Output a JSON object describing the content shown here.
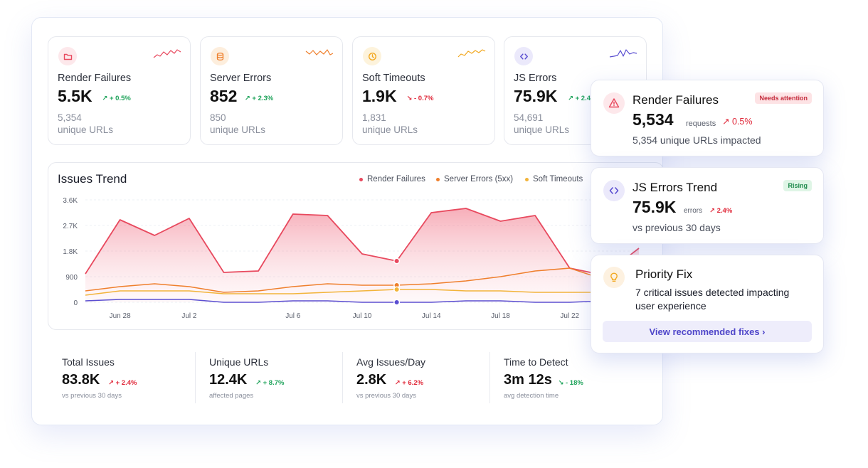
{
  "kpis": [
    {
      "title": "Render Failures",
      "value": "5.5K",
      "delta": "+ 0.5%",
      "direction": "up",
      "sub_count": "5,354",
      "sub_label": "unique URLs",
      "icon": "folder-icon",
      "color": "#e8495e",
      "icon_bg": "#fde8eb"
    },
    {
      "title": "Server Errors",
      "value": "852",
      "delta": "+ 2.3%",
      "direction": "up",
      "sub_count": "850",
      "sub_label": "unique URLs",
      "icon": "database-icon",
      "color": "#ef7f2c",
      "icon_bg": "#fdeedd"
    },
    {
      "title": "Soft Timeouts",
      "value": "1.9K",
      "delta": "- 0.7%",
      "direction": "down",
      "sub_count": "1,831",
      "sub_label": "unique URLs",
      "icon": "clock-icon",
      "color": "#f2a81f",
      "icon_bg": "#fdf3dc"
    },
    {
      "title": "JS Errors",
      "value": "75.9K",
      "delta": "+ 2.4%",
      "direction": "up",
      "sub_count": "54,691",
      "sub_label": "unique URLs",
      "icon": "code-icon",
      "color": "#5b4fd1",
      "icon_bg": "#ebe9fb"
    }
  ],
  "trend": {
    "title": "Issues Trend",
    "legend": [
      {
        "name": "Render Failures",
        "color": "#e8495e"
      },
      {
        "name": "Server Errors (5xx)",
        "color": "#ef7f2c"
      },
      {
        "name": "Soft Timeouts",
        "color": "#f2b43a"
      }
    ]
  },
  "chart_data": {
    "type": "area",
    "title": "Issues Trend",
    "y_ticks": [
      "3.6K",
      "2.7K",
      "1.8K",
      "900",
      "0"
    ],
    "x_ticks": [
      "Jun 28",
      "Jul 2",
      "Jul 6",
      "Jul 10",
      "Jul 14",
      "Jul 18",
      "Jul 22"
    ],
    "ylim": [
      0,
      3600
    ],
    "x": [
      "Jun 27",
      "Jun 28",
      "Jun 30",
      "Jul 2",
      "Jul 4",
      "Jul 5",
      "Jul 6",
      "Jul 8",
      "Jul 10",
      "Jul 12",
      "Jul 14",
      "Jul 16",
      "Jul 18",
      "Jul 20",
      "Jul 22",
      "Jul 24",
      "Jul 26"
    ],
    "series": [
      {
        "name": "Render Failures",
        "color": "#e8495e",
        "values": [
          1000,
          2900,
          2350,
          2950,
          1050,
          1100,
          3100,
          3050,
          1700,
          1450,
          3150,
          3300,
          2850,
          3050,
          1200,
          950,
          1900
        ]
      },
      {
        "name": "Server Errors (5xx)",
        "color": "#ef7f2c",
        "values": [
          400,
          550,
          650,
          550,
          350,
          400,
          550,
          650,
          600,
          600,
          650,
          750,
          900,
          1100,
          1200,
          800,
          900
        ]
      },
      {
        "name": "Soft Timeouts",
        "color": "#f2b43a",
        "values": [
          250,
          400,
          400,
          400,
          300,
          300,
          300,
          350,
          400,
          450,
          450,
          400,
          400,
          350,
          350,
          350,
          350
        ]
      },
      {
        "name": "JS Errors",
        "color": "#5b4fd1",
        "values": [
          50,
          100,
          100,
          100,
          0,
          0,
          50,
          50,
          0,
          0,
          0,
          50,
          50,
          0,
          0,
          50,
          50
        ]
      }
    ]
  },
  "stats": [
    {
      "label": "Total Issues",
      "value": "83.8K",
      "delta": "+ 2.4%",
      "direction": "up",
      "color": "#e0293a",
      "sub": "vs previous 30 days"
    },
    {
      "label": "Unique URLs",
      "value": "12.4K",
      "delta": "+ 8.7%",
      "direction": "up",
      "color": "#1ea35a",
      "sub": "affected pages"
    },
    {
      "label": "Avg Issues/Day",
      "value": "2.8K",
      "delta": "+ 6.2%",
      "direction": "up",
      "color": "#e0293a",
      "sub": "vs previous 30 days"
    },
    {
      "label": "Time to Detect",
      "value": "3m 12s",
      "delta": "- 18%",
      "direction": "down",
      "color": "#1ea35a",
      "sub": "avg detection time"
    }
  ],
  "cards": {
    "render": {
      "title": "Render Failures",
      "badge": "Needs attention",
      "value": "5,534",
      "unit": "requests",
      "delta": "0.5%",
      "sub": "5,354 unique URLs impacted"
    },
    "js": {
      "title": "JS Errors Trend",
      "badge": "Rising",
      "value": "75.9K",
      "unit": "errors",
      "delta": "2.4%",
      "sub": "vs previous 30 days"
    },
    "priority": {
      "title": "Priority Fix",
      "line1": "7 critical issues detected impacting",
      "line2": "user experience",
      "cta": "View recommended fixes ›"
    }
  }
}
